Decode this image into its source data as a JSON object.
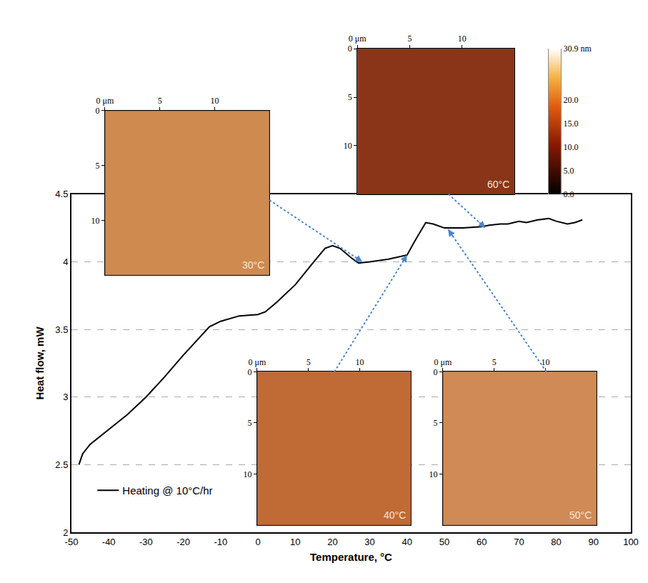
{
  "chart_data": {
    "type": "line",
    "x_label": "Temperature, °C",
    "y_label": "Heat flow, mW",
    "xlim": [
      -50,
      100
    ],
    "xticks": [
      -50,
      -40,
      -30,
      -20,
      -10,
      0,
      10,
      20,
      30,
      40,
      50,
      60,
      70,
      80,
      90,
      100
    ],
    "ylim": [
      2,
      4.5
    ],
    "yticks": [
      2,
      2.5,
      3,
      3.5,
      4,
      4.5
    ],
    "grid": "y",
    "legend": "lower left",
    "series": [
      {
        "name": "Heating @ 10°C/hr",
        "color": "#000000",
        "x": [
          -48,
          -47,
          -45,
          -40,
          -35,
          -30,
          -25,
          -20,
          -15,
          -13,
          -10,
          -5,
          0,
          2,
          5,
          10,
          15,
          18,
          20,
          22,
          25,
          27,
          30,
          35,
          40,
          42,
          45,
          47,
          50,
          55,
          60,
          62,
          65,
          67,
          70,
          72,
          75,
          78,
          80,
          83,
          85,
          87
        ],
        "values": [
          2.5,
          2.58,
          2.65,
          2.76,
          2.87,
          3.0,
          3.15,
          3.31,
          3.46,
          3.52,
          3.56,
          3.6,
          3.61,
          3.63,
          3.7,
          3.83,
          4.0,
          4.1,
          4.12,
          4.1,
          4.03,
          3.99,
          4.0,
          4.02,
          4.05,
          4.15,
          4.29,
          4.28,
          4.25,
          4.25,
          4.26,
          4.27,
          4.28,
          4.28,
          4.3,
          4.29,
          4.31,
          4.32,
          4.3,
          4.28,
          4.29,
          4.31
        ]
      }
    ],
    "insets": [
      {
        "label": "30°C",
        "at": [
          28,
          4.0
        ],
        "color": "#cf8a50",
        "xlim": [
          0,
          15
        ],
        "ylim": [
          15,
          0
        ],
        "xticks": [
          {
            "value": 0,
            "label": "0 μm"
          },
          5,
          10
        ],
        "yticks": [
          0,
          5,
          10
        ]
      },
      {
        "label": "40°C",
        "at": [
          40,
          4.05
        ],
        "color": "#c06a35",
        "xlim": [
          0,
          15
        ],
        "ylim": [
          15,
          0
        ],
        "xticks": [
          {
            "value": 0,
            "label": "0 μm"
          },
          5,
          10
        ],
        "yticks": [
          0,
          5,
          10
        ]
      },
      {
        "label": "50°C",
        "at": [
          51,
          4.24
        ],
        "color": "#d08a55",
        "xlim": [
          0,
          15
        ],
        "ylim": [
          15,
          0
        ],
        "xticks": [
          {
            "value": 0,
            "label": "0 μm"
          },
          5,
          10
        ],
        "yticks": [
          0,
          5,
          10
        ]
      },
      {
        "label": "60°C",
        "at": [
          61,
          4.25
        ],
        "color": "#8a3518",
        "xlim": [
          0,
          15
        ],
        "ylim": [
          15,
          0
        ],
        "xticks": [
          {
            "value": 0,
            "label": "0 μm"
          },
          5,
          10
        ],
        "yticks": [
          0,
          5,
          10
        ],
        "colorbar": {
          "range": [
            0,
            30.9
          ],
          "ticks": [
            {
              "value": 30.9,
              "label": "30.9 nm"
            },
            {
              "value": 20,
              "label": "20.0"
            },
            {
              "value": 15,
              "label": "15.0"
            },
            {
              "value": 10,
              "label": "10.0"
            },
            {
              "value": 5,
              "label": "5.0"
            },
            {
              "value": 0,
              "label": "0.0"
            }
          ]
        }
      }
    ]
  }
}
